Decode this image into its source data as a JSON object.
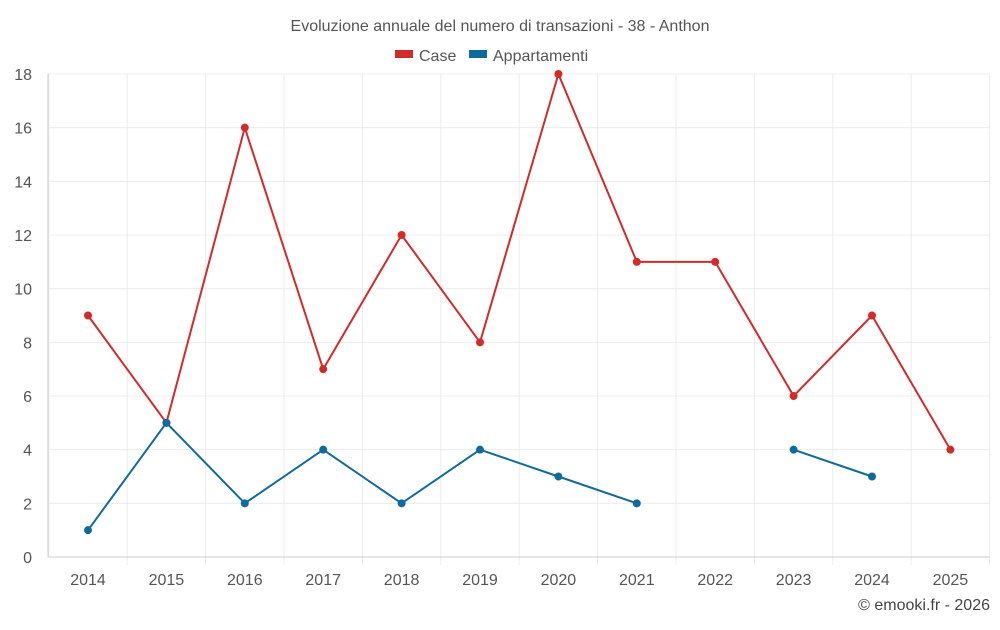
{
  "chart_data": {
    "type": "line",
    "title": "Evoluzione annuale del numero di transazioni - 38 - Anthon",
    "xlabel": "",
    "ylabel": "",
    "categories": [
      "2014",
      "2015",
      "2016",
      "2017",
      "2018",
      "2019",
      "2020",
      "2021",
      "2022",
      "2023",
      "2024",
      "2025"
    ],
    "ylim": [
      0,
      18
    ],
    "yticks": [
      0,
      2,
      4,
      6,
      8,
      10,
      12,
      14,
      16,
      18
    ],
    "grid": true,
    "legend_position": "top-center",
    "series": [
      {
        "name": "Case",
        "color": "#d32a2a",
        "values": [
          9,
          5,
          16,
          7,
          12,
          8,
          18,
          11,
          11,
          6,
          9,
          4
        ]
      },
      {
        "name": "Appartamenti",
        "color": "#0f6a9e",
        "values": [
          1,
          5,
          2,
          4,
          2,
          4,
          3,
          2,
          null,
          4,
          3,
          null
        ]
      }
    ]
  },
  "credit": "© emooki.fr - 2026"
}
